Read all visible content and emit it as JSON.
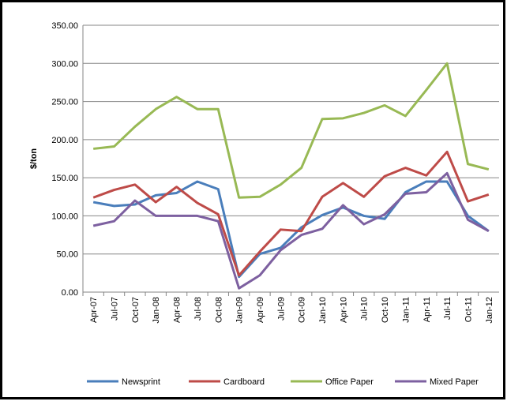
{
  "chart_data": {
    "type": "line",
    "y_label": "$/ton",
    "categories": [
      "Apr-07",
      "Jul-07",
      "Oct-07",
      "Jan-08",
      "Apr-08",
      "Jul-08",
      "Oct-08",
      "Jan-09",
      "Apr-09",
      "Jul-09",
      "Oct-09",
      "Jan-10",
      "Apr-10",
      "Jul-10",
      "Oct-10",
      "Jan-11",
      "Apr-11",
      "Jul-11",
      "Oct-11",
      "Jan-12"
    ],
    "series": [
      {
        "name": "Newsprint",
        "color": "#4a7ebb",
        "values": [
          118,
          113,
          115,
          127,
          130,
          145,
          135,
          20,
          50,
          58,
          85,
          101,
          111,
          100,
          96,
          131,
          145,
          145,
          100,
          80
        ]
      },
      {
        "name": "Cardboard",
        "color": "#be4b48",
        "values": [
          124,
          134,
          141,
          118,
          138,
          117,
          102,
          22,
          53,
          82,
          80,
          125,
          143,
          125,
          152,
          163,
          153,
          184,
          119,
          128
        ]
      },
      {
        "name": "Office Paper",
        "color": "#98b954",
        "values": [
          188,
          191,
          217,
          240,
          256,
          240,
          240,
          124,
          125,
          141,
          163,
          227,
          228,
          235,
          245,
          231,
          265,
          300,
          168,
          161
        ]
      },
      {
        "name": "Mixed Paper",
        "color": "#7d60a0",
        "values": [
          87,
          93,
          120,
          100,
          100,
          100,
          93,
          5,
          22,
          55,
          75,
          83,
          114,
          89,
          102,
          129,
          131,
          156,
          95,
          80
        ]
      }
    ],
    "ylim": [
      0,
      350
    ],
    "yticks": [
      {
        "value": 0,
        "label": "0.00"
      },
      {
        "value": 50,
        "label": "50.00"
      },
      {
        "value": 100,
        "label": "100.00"
      },
      {
        "value": 150,
        "label": "150.00"
      },
      {
        "value": 200,
        "label": "200.00"
      },
      {
        "value": 250,
        "label": "250.00"
      },
      {
        "value": 300,
        "label": "300.00"
      },
      {
        "value": 350,
        "label": "350.00"
      }
    ],
    "grid": true
  }
}
